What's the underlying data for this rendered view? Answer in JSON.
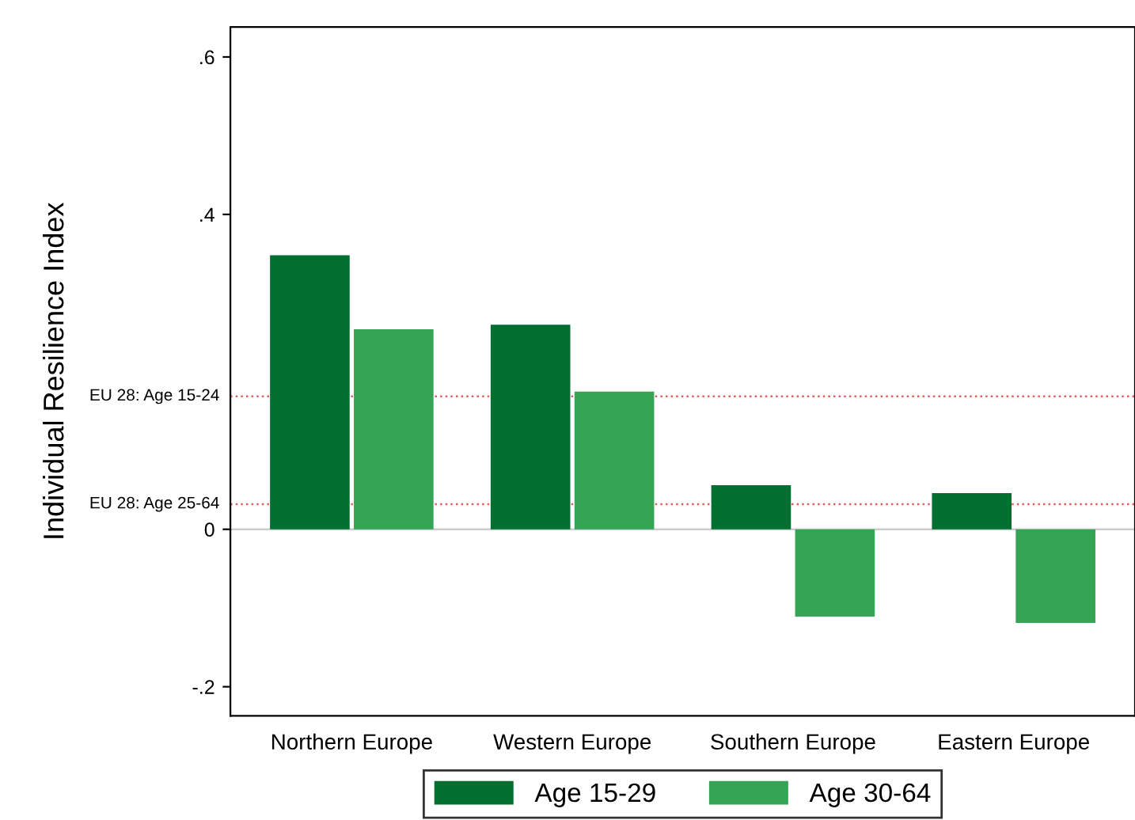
{
  "chart_data": {
    "type": "bar",
    "ylabel": "Individual Resilience Index",
    "categories": [
      "Northern Europe",
      "Western Europe",
      "Southern Europe",
      "Eastern Europe"
    ],
    "series": [
      {
        "name": "Age 15-29",
        "color": "#006f2f",
        "values": [
          0.348,
          0.26,
          0.056,
          0.046
        ]
      },
      {
        "name": "Age 30-64",
        "color": "#33a555",
        "values": [
          0.254,
          0.175,
          -0.111,
          -0.119
        ]
      }
    ],
    "ylim": [
      -0.237,
      0.638
    ],
    "yticks": [
      {
        "value": 0.6,
        "label": ".6"
      },
      {
        "value": 0.4,
        "label": ".4"
      },
      0,
      {
        "value": -0.2,
        "label": "-.2"
      }
    ],
    "ref_lines": [
      {
        "axis": "y",
        "value": 0.169,
        "label": "EU 28: Age 15-24",
        "color": "#e06060",
        "line_style": "dotted"
      },
      {
        "axis": "y",
        "value": 0.032,
        "label": "EU 28: Age 25-64",
        "color": "#e06060",
        "line_style": "dotted"
      },
      {
        "axis": "y",
        "value": 0,
        "label": null,
        "color": "#cccccc",
        "line_style": "solid"
      }
    ],
    "grid": false,
    "legend": "bottom"
  }
}
